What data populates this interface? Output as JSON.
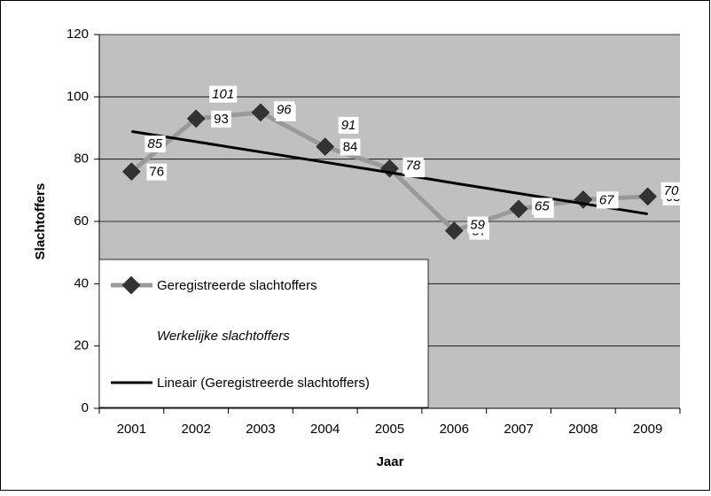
{
  "chart_data": {
    "type": "line",
    "x_label": "Jaar",
    "y_label": "Slachtoffers",
    "categories": [
      "2001",
      "2002",
      "2003",
      "2004",
      "2005",
      "2006",
      "2007",
      "2008",
      "2009"
    ],
    "series": [
      {
        "name": "Geregistreerde slachtoffers",
        "color": "#999999",
        "marker_color": "#333333",
        "marker": "diamond",
        "line": true,
        "labels": "normal",
        "values": [
          76,
          93,
          95,
          84,
          77,
          57,
          64,
          67,
          68
        ]
      },
      {
        "name": "Werkelijke slachtoffers",
        "marker": "none",
        "line": false,
        "labels": "italic",
        "values": [
          85,
          101,
          96,
          91,
          78,
          59,
          65,
          67,
          70
        ]
      },
      {
        "name": "Lineair (Geregistreerde slachtoffers)",
        "color": "#000000",
        "marker": "none",
        "line": true,
        "labels": "none",
        "values": [
          88.9,
          85.6,
          82.3,
          79.0,
          75.7,
          72.3,
          69.0,
          65.7,
          62.4
        ]
      }
    ],
    "ylim": [
      0,
      120
    ],
    "yticks": [
      0,
      20,
      40,
      60,
      80,
      100,
      120
    ],
    "grid": true,
    "plot_background": "#c0c0c0",
    "legend": "lower left"
  }
}
